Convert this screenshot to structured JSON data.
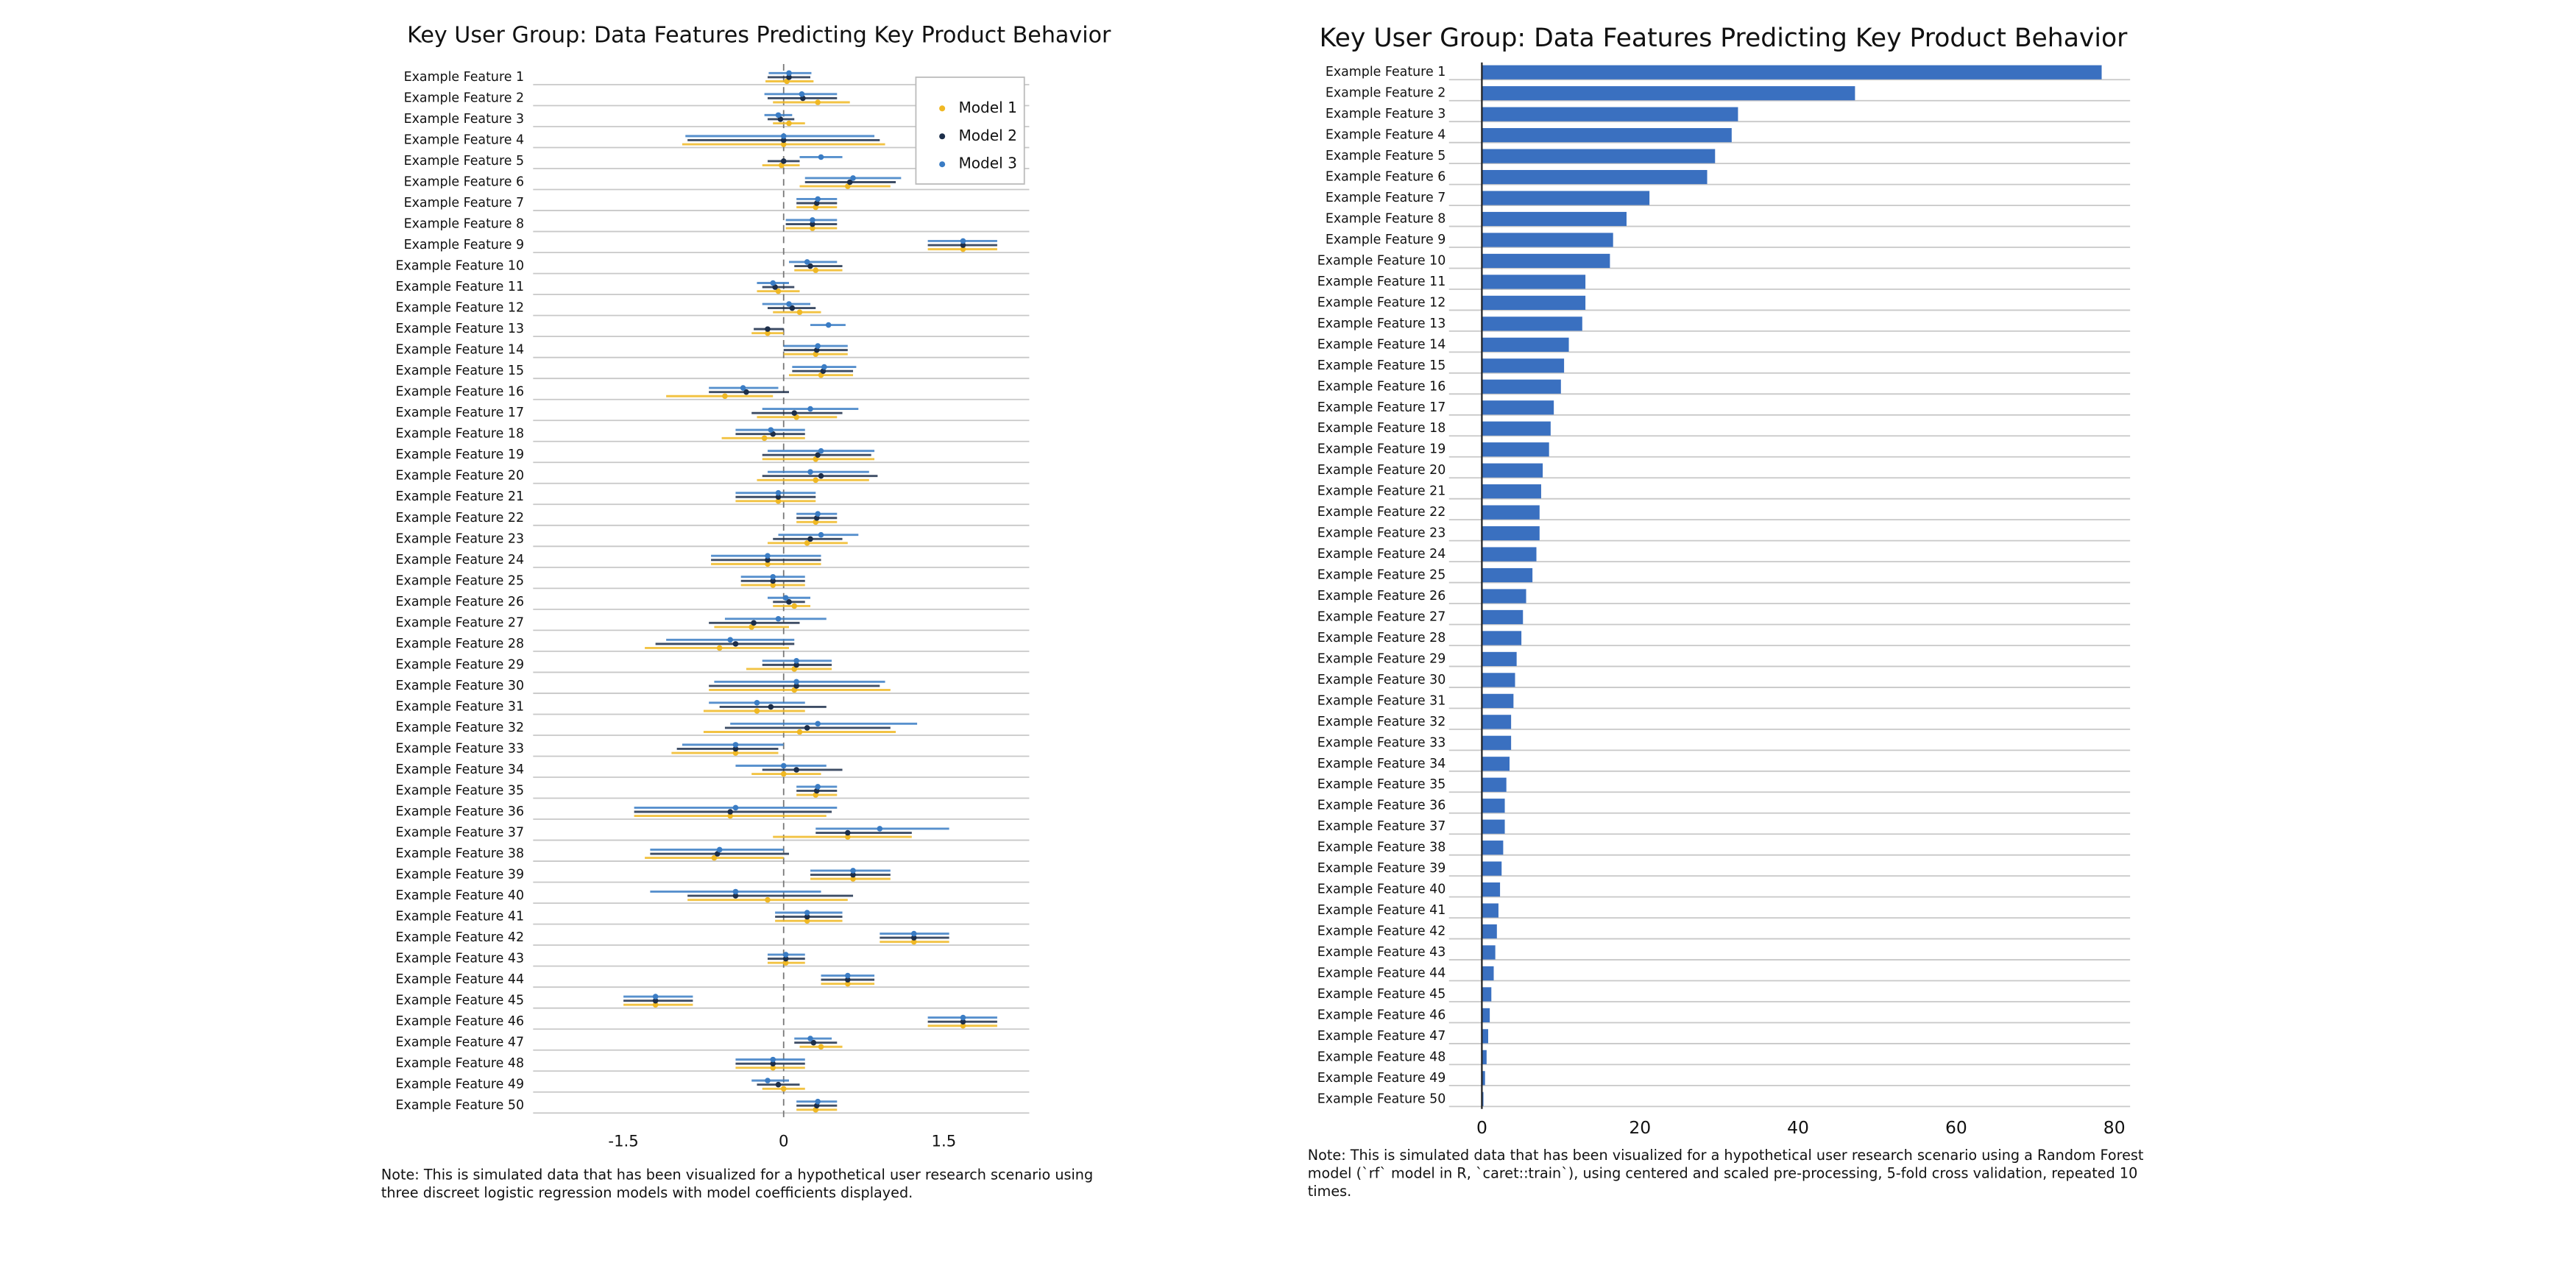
{
  "chart_data": [
    {
      "type": "coef",
      "title": "Key User Group: Data Features Predicting Key Product Behavior",
      "note": "Note: This is simulated data that has been visualized for a hypothetical user research scenario using three discreet logistic regression models with model coefficients displayed.",
      "categories": [
        "Example Feature 1",
        "Example Feature 2",
        "Example Feature 3",
        "Example Feature 4",
        "Example Feature 5",
        "Example Feature 6",
        "Example Feature 7",
        "Example Feature 8",
        "Example Feature 9",
        "Example Feature 10",
        "Example Feature 11",
        "Example Feature 12",
        "Example Feature 13",
        "Example Feature 14",
        "Example Feature 15",
        "Example Feature 16",
        "Example Feature 17",
        "Example Feature 18",
        "Example Feature 19",
        "Example Feature 20",
        "Example Feature 21",
        "Example Feature 22",
        "Example Feature 23",
        "Example Feature 24",
        "Example Feature 25",
        "Example Feature 26",
        "Example Feature 27",
        "Example Feature 28",
        "Example Feature 29",
        "Example Feature 30",
        "Example Feature 31",
        "Example Feature 32",
        "Example Feature 33",
        "Example Feature 34",
        "Example Feature 35",
        "Example Feature 36",
        "Example Feature 37",
        "Example Feature 38",
        "Example Feature 39",
        "Example Feature 40",
        "Example Feature 41",
        "Example Feature 42",
        "Example Feature 43",
        "Example Feature 44",
        "Example Feature 45",
        "Example Feature 46",
        "Example Feature 47",
        "Example Feature 48",
        "Example Feature 49",
        "Example Feature 50"
      ],
      "series": [
        {
          "name": "Model 1",
          "color": "#f0b823",
          "values": [
            0.03,
            0.32,
            0.05,
            0,
            -0.02,
            0.6,
            0.3,
            0.27,
            1.68,
            0.3,
            -0.05,
            0.15,
            -0.15,
            0.3,
            0.35,
            -0.55,
            0.12,
            -0.18,
            0.3,
            0.3,
            -0.05,
            0.3,
            0.22,
            -0.15,
            -0.1,
            0.1,
            -0.3,
            -0.6,
            0.1,
            0.1,
            -0.25,
            0.15,
            -0.45,
            0,
            0.3,
            -0.5,
            0.6,
            -0.65,
            0.65,
            -0.15,
            0.22,
            1.22,
            0.02,
            0.6,
            -1.2,
            1.68,
            0.35,
            -0.1,
            0,
            0.3
          ],
          "lower": [
            -0.17,
            -0.1,
            -0.1,
            -0.95,
            -0.2,
            0.15,
            0.12,
            0.02,
            1.35,
            0.1,
            -0.25,
            -0.1,
            -0.3,
            0,
            0.05,
            -1.1,
            -0.25,
            -0.58,
            -0.2,
            -0.25,
            -0.45,
            0.12,
            -0.15,
            -0.68,
            -0.4,
            -0.1,
            -0.65,
            -1.3,
            -0.35,
            -0.7,
            -0.75,
            -0.75,
            -1.05,
            -0.3,
            0.12,
            -1.4,
            -0.1,
            -1.3,
            0.25,
            -0.9,
            -0.08,
            0.9,
            -0.15,
            0.35,
            -1.5,
            1.35,
            0.15,
            -0.45,
            -0.2,
            0.12
          ],
          "upper": [
            0.28,
            0.62,
            0.2,
            0.95,
            0.15,
            1.0,
            0.5,
            0.5,
            2.0,
            0.55,
            0.15,
            0.35,
            0,
            0.6,
            0.65,
            -0.1,
            0.5,
            0.2,
            0.85,
            0.8,
            0.3,
            0.5,
            0.6,
            0.35,
            0.2,
            0.25,
            0.05,
            0.05,
            0.45,
            1.0,
            0.2,
            1.05,
            -0.05,
            0.35,
            0.5,
            0.4,
            1.2,
            0,
            1.0,
            0.6,
            0.55,
            1.55,
            0.2,
            0.85,
            -0.85,
            2.0,
            0.55,
            0.2,
            0.2,
            0.5
          ]
        },
        {
          "name": "Model 2",
          "color": "#1c2e4a",
          "values": [
            0.05,
            0.18,
            -0.03,
            0,
            0,
            0.62,
            0.31,
            0.27,
            1.68,
            0.25,
            -0.08,
            0.08,
            -0.15,
            0.31,
            0.37,
            -0.35,
            0.1,
            -0.1,
            0.32,
            0.35,
            -0.05,
            0.31,
            0.25,
            -0.15,
            -0.1,
            0.05,
            -0.28,
            -0.45,
            0.12,
            0.12,
            -0.12,
            0.22,
            -0.45,
            0.12,
            0.31,
            -0.5,
            0.6,
            -0.62,
            0.65,
            -0.45,
            0.22,
            1.22,
            0.02,
            0.6,
            -1.2,
            1.68,
            0.28,
            -0.1,
            -0.05,
            0.31
          ],
          "lower": [
            -0.15,
            -0.15,
            -0.15,
            -0.9,
            -0.15,
            0.2,
            0.12,
            0.02,
            1.35,
            0.1,
            -0.2,
            -0.15,
            -0.28,
            0,
            0.08,
            -0.7,
            -0.3,
            -0.45,
            -0.2,
            -0.2,
            -0.45,
            0.12,
            -0.1,
            -0.68,
            -0.4,
            -0.1,
            -0.7,
            -1.2,
            -0.2,
            -0.7,
            -0.6,
            -0.55,
            -1.0,
            -0.2,
            0.12,
            -1.4,
            0.3,
            -1.25,
            0.25,
            -0.9,
            -0.08,
            0.9,
            -0.15,
            0.35,
            -1.5,
            1.35,
            0.1,
            -0.45,
            -0.25,
            0.12
          ],
          "upper": [
            0.25,
            0.5,
            0.1,
            0.9,
            0.15,
            1.05,
            0.5,
            0.5,
            2.0,
            0.55,
            0.1,
            0.3,
            0,
            0.6,
            0.65,
            0.05,
            0.55,
            0.2,
            0.82,
            0.88,
            0.3,
            0.5,
            0.55,
            0.35,
            0.2,
            0.2,
            0.15,
            0.1,
            0.45,
            0.9,
            0.4,
            1.0,
            -0.05,
            0.55,
            0.5,
            0.45,
            1.2,
            0.05,
            1.0,
            0.65,
            0.55,
            1.55,
            0.2,
            0.85,
            -0.85,
            2.0,
            0.5,
            0.2,
            0.15,
            0.5
          ]
        },
        {
          "name": "Model 3",
          "color": "#3a7cc4",
          "values": [
            0.05,
            0.17,
            -0.05,
            0,
            0.35,
            0.65,
            0.32,
            0.27,
            1.68,
            0.22,
            -0.1,
            0.05,
            0.42,
            0.32,
            0.38,
            -0.38,
            0.25,
            -0.12,
            0.35,
            0.25,
            -0.05,
            0.32,
            0.35,
            -0.15,
            -0.1,
            0.02,
            -0.05,
            -0.5,
            0.12,
            0.12,
            -0.25,
            0.32,
            -0.45,
            0,
            0.32,
            -0.45,
            0.9,
            -0.6,
            0.65,
            -0.45,
            0.22,
            1.22,
            0.02,
            0.6,
            -1.2,
            1.68,
            0.25,
            -0.1,
            -0.15,
            0.32
          ],
          "lower": [
            -0.14,
            -0.18,
            -0.18,
            -0.92,
            0.15,
            0.2,
            0.12,
            0.02,
            1.35,
            0.05,
            -0.25,
            -0.2,
            0.25,
            0,
            0.08,
            -0.7,
            -0.2,
            -0.45,
            -0.15,
            -0.15,
            -0.45,
            0.12,
            -0.05,
            -0.68,
            -0.4,
            -0.15,
            -0.55,
            -1.1,
            -0.2,
            -0.65,
            -0.7,
            -0.5,
            -0.95,
            -0.45,
            0.12,
            -1.4,
            0.3,
            -1.25,
            0.25,
            -1.25,
            -0.08,
            0.9,
            -0.15,
            0.35,
            -1.5,
            1.35,
            0.1,
            -0.45,
            -0.3,
            0.12
          ],
          "upper": [
            0.26,
            0.5,
            0.08,
            0.85,
            0.55,
            1.1,
            0.5,
            0.5,
            2.0,
            0.5,
            0.05,
            0.25,
            0.58,
            0.6,
            0.68,
            -0.05,
            0.7,
            0.2,
            0.85,
            0.8,
            0.3,
            0.5,
            0.7,
            0.35,
            0.2,
            0.25,
            0.4,
            0.1,
            0.45,
            0.95,
            0.2,
            1.25,
            0,
            0.4,
            0.5,
            0.5,
            1.55,
            0,
            1.0,
            0.35,
            0.55,
            1.55,
            0.2,
            0.85,
            -0.85,
            2.0,
            0.45,
            0.2,
            0.05,
            0.5
          ]
        }
      ],
      "xlim": [
        -2.3,
        2.3
      ],
      "xticks": [
        {
          "value": -1.5,
          "label": "-1.5"
        },
        0,
        1.5
      ],
      "legend": "upper right",
      "grid": true,
      "zero_line": true
    },
    {
      "type": "bar",
      "title": "Key User Group: Data Features Predicting Key Product Behavior",
      "note": "Note: This is simulated data that has been visualized for a hypothetical user research scenario using a Random Forest model (`rf` model in R, `caret::train`), using centered and scaled pre-processing, 5-fold cross validation, repeated 10 times.",
      "categories": [
        "Example Feature 1",
        "Example Feature 2",
        "Example Feature 3",
        "Example Feature 4",
        "Example Feature 5",
        "Example Feature 6",
        "Example Feature 7",
        "Example Feature 8",
        "Example Feature 9",
        "Example Feature 10",
        "Example Feature 11",
        "Example Feature 12",
        "Example Feature 13",
        "Example Feature 14",
        "Example Feature 15",
        "Example Feature 16",
        "Example Feature 17",
        "Example Feature 18",
        "Example Feature 19",
        "Example Feature 20",
        "Example Feature 21",
        "Example Feature 22",
        "Example Feature 23",
        "Example Feature 24",
        "Example Feature 25",
        "Example Feature 26",
        "Example Feature 27",
        "Example Feature 28",
        "Example Feature 29",
        "Example Feature 30",
        "Example Feature 31",
        "Example Feature 32",
        "Example Feature 33",
        "Example Feature 34",
        "Example Feature 35",
        "Example Feature 36",
        "Example Feature 37",
        "Example Feature 38",
        "Example Feature 39",
        "Example Feature 40",
        "Example Feature 41",
        "Example Feature 42",
        "Example Feature 43",
        "Example Feature 44",
        "Example Feature 45",
        "Example Feature 46",
        "Example Feature 47",
        "Example Feature 48",
        "Example Feature 49",
        "Example Feature 50"
      ],
      "values": [
        78.4,
        47.2,
        32.4,
        31.6,
        29.5,
        28.5,
        21.2,
        18.3,
        16.6,
        16.2,
        13.1,
        13.1,
        12.7,
        11.0,
        10.4,
        10.0,
        9.1,
        8.7,
        8.5,
        7.7,
        7.5,
        7.3,
        7.3,
        6.9,
        6.4,
        5.6,
        5.2,
        5.0,
        4.4,
        4.2,
        4.0,
        3.7,
        3.7,
        3.5,
        3.1,
        2.9,
        2.9,
        2.7,
        2.5,
        2.3,
        2.1,
        1.9,
        1.7,
        1.5,
        1.2,
        1.0,
        0.8,
        0.6,
        0.4,
        0.2
      ],
      "color": "#3a70c0",
      "xlim": [
        0,
        82
      ],
      "xticks": [
        0,
        20,
        40,
        60,
        80
      ],
      "grid": true
    }
  ]
}
